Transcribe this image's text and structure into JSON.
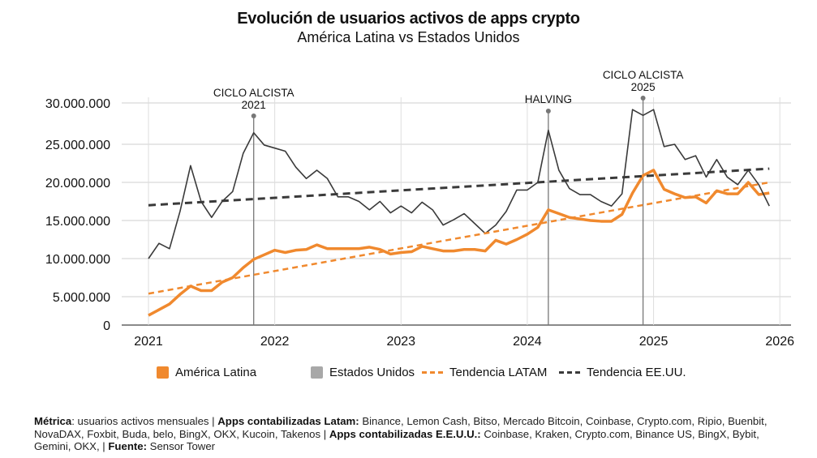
{
  "title": "Evolución de usuarios activos de apps crypto",
  "subtitle": "América Latina vs Estados Unidos",
  "chart_data": {
    "type": "line",
    "title": "Evolución de usuarios activos de apps crypto",
    "subtitle": "América Latina vs Estados Unidos",
    "x_ticks": [
      "2021",
      "2022",
      "2023",
      "2024",
      "2025",
      "2026"
    ],
    "y_ticks": [
      "0",
      "5.000.000",
      "10.000.000",
      "15.000.000",
      "20.000.000",
      "25.000.000",
      "30.000.000"
    ],
    "y_tick_values": [
      0,
      5000000,
      10000000,
      15000000,
      20000000,
      25000000,
      30000000
    ],
    "ylim": [
      0,
      30000000
    ],
    "xlim": [
      "2020-11",
      "2026-02"
    ],
    "grid": true,
    "legend_position": "bottom",
    "x": [
      "2021-01",
      "2021-02",
      "2021-03",
      "2021-04",
      "2021-05",
      "2021-06",
      "2021-07",
      "2021-08",
      "2021-09",
      "2021-10",
      "2021-11",
      "2021-12",
      "2022-01",
      "2022-02",
      "2022-03",
      "2022-04",
      "2022-05",
      "2022-06",
      "2022-07",
      "2022-08",
      "2022-09",
      "2022-10",
      "2022-11",
      "2022-12",
      "2023-01",
      "2023-02",
      "2023-03",
      "2023-04",
      "2023-05",
      "2023-06",
      "2023-07",
      "2023-08",
      "2023-09",
      "2023-10",
      "2023-11",
      "2023-12",
      "2024-01",
      "2024-02",
      "2024-03",
      "2024-04",
      "2024-05",
      "2024-06",
      "2024-07",
      "2024-08",
      "2024-09",
      "2024-10",
      "2024-11",
      "2024-12",
      "2025-01",
      "2025-02",
      "2025-03",
      "2025-04",
      "2025-05",
      "2025-06",
      "2025-07",
      "2025-08",
      "2025-09",
      "2025-10",
      "2025-11",
      "2025-12"
    ],
    "series": [
      {
        "name": "América Latina",
        "color": "#f0892e",
        "style": "solid",
        "values": [
          1700000,
          2700000,
          3700000,
          5300000,
          6400000,
          5800000,
          5800000,
          6900000,
          7500000,
          8800000,
          9900000,
          10500000,
          11100000,
          10800000,
          11100000,
          11200000,
          11800000,
          11300000,
          11300000,
          11300000,
          11300000,
          11500000,
          11200000,
          10600000,
          10800000,
          10900000,
          11600000,
          11300000,
          11000000,
          11000000,
          11200000,
          11200000,
          11000000,
          12400000,
          11900000,
          12500000,
          13200000,
          14100000,
          16400000,
          15900000,
          15400000,
          15200000,
          15000000,
          14900000,
          14900000,
          15800000,
          18600000,
          20900000,
          21600000,
          19100000,
          18500000,
          18000000,
          18100000,
          17300000,
          18900000,
          18500000,
          18500000,
          20000000,
          18400000,
          18600000
        ]
      },
      {
        "name": "Estados Unidos",
        "color": "#3a3a3a",
        "style": "solid",
        "values": [
          10000000,
          12000000,
          11300000,
          16200000,
          22200000,
          17500000,
          15400000,
          17500000,
          18800000,
          23800000,
          26400000,
          24900000,
          24500000,
          24100000,
          22000000,
          20500000,
          21600000,
          20500000,
          18100000,
          18100000,
          17500000,
          16400000,
          17500000,
          16000000,
          16900000,
          16000000,
          17400000,
          16400000,
          14400000,
          15100000,
          15900000,
          14600000,
          13300000,
          14400000,
          16200000,
          19000000,
          19000000,
          20000000,
          26700000,
          21600000,
          19200000,
          18400000,
          18400000,
          17500000,
          16900000,
          18500000,
          29200000,
          28500000,
          29200000,
          24700000,
          25000000,
          23000000,
          23500000,
          20700000,
          23000000,
          20700000,
          19700000,
          21600000,
          19700000,
          16900000
        ]
      },
      {
        "name": "Tendencia LATAM",
        "color": "#f0892e",
        "style": "dashed",
        "start": [
          "2021-01",
          5400000
        ],
        "end": [
          "2025-12",
          20000000
        ]
      },
      {
        "name": "Tendencia EE.UU.",
        "color": "#3a3a3a",
        "style": "dashed",
        "start": [
          "2021-01",
          17000000
        ],
        "end": [
          "2025-12",
          21800000
        ]
      }
    ],
    "annotations": [
      {
        "label_line1": "CICLO ALCISTA",
        "label_line2": "2021",
        "x": "2021-11"
      },
      {
        "label_line1": "HALVING",
        "label_line2": "",
        "x": "2024-03"
      },
      {
        "label_line1": "CICLO ALCISTA",
        "label_line2": "2025",
        "x": "2024-12"
      }
    ]
  },
  "legend": [
    {
      "label": "América Latina",
      "color": "#f0892e",
      "kind": "square"
    },
    {
      "label": "Estados Unidos",
      "color": "#a8a8a8",
      "kind": "square"
    },
    {
      "label": "Tendencia LATAM",
      "color": "#f0892e",
      "kind": "dashed"
    },
    {
      "label": "Tendencia EE.UU.",
      "color": "#3a3a3a",
      "kind": "dashed"
    }
  ],
  "footer": {
    "metric_label": "Métrica",
    "metric_text": ": usuarios activos mensuales | ",
    "latam_label": "Apps contabilizadas Latam:",
    "latam_text": " Binance, Lemon Cash, Bitso, Mercado Bitcoin, Coinbase, Crypto.com, Ripio, Buenbit, NovaDAX, Foxbit, Buda, belo, BingX, OKX, Kucoin, Takenos | ",
    "us_label": "Apps contabilizadas E.E.U.U.:",
    "us_text": " Coinbase, Kraken, Crypto.com, Binance US, BingX, Bybit, Gemini, OKX,  | ",
    "source_label": "Fuente:",
    "source_text": " Sensor Tower"
  }
}
